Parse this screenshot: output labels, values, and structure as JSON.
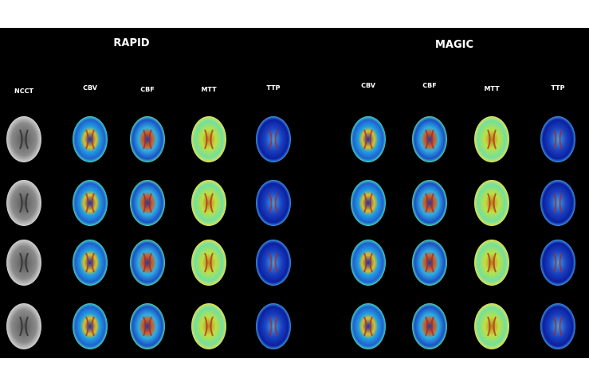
{
  "group_titles": [
    "RAPID",
    "MAGIC"
  ],
  "columns": [
    "NCCT",
    "CBV",
    "CBF",
    "MTT",
    "TTP",
    "CBV",
    "CBF",
    "MTT",
    "TTP"
  ]
}
